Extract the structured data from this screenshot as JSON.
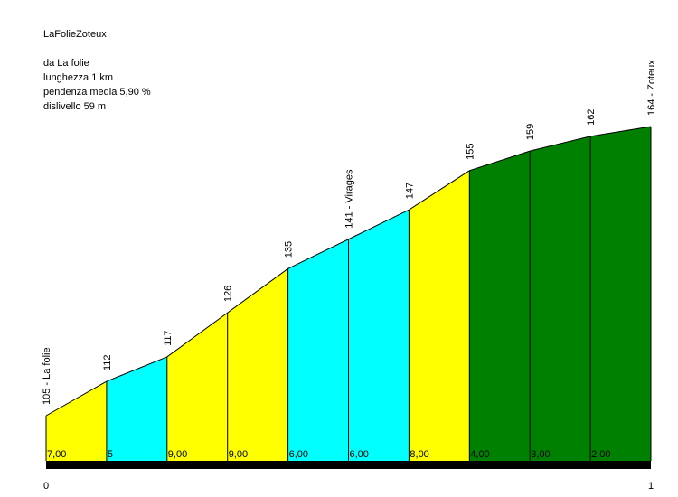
{
  "info": {
    "title": "LaFolieZoteux",
    "from": "da La folie",
    "length": "lunghezza 1 km",
    "gradient": "pendenza media 5,90 %",
    "elevation_gain": "dislivello 59 m"
  },
  "chart_data": {
    "type": "area",
    "title": "LaFolieZoteux",
    "xlabel": "",
    "ylabel": "",
    "x_unit": "km",
    "x_range": [
      0,
      1
    ],
    "x_tick_labels": [
      "0",
      "1"
    ],
    "y_range": [
      105,
      164
    ],
    "grid": false,
    "legend": "none",
    "points": [
      {
        "x": 0.0,
        "altitude": 105,
        "label": "105 - La folie"
      },
      {
        "x": 0.1,
        "altitude": 112,
        "label": "112"
      },
      {
        "x": 0.2,
        "altitude": 117,
        "label": "117"
      },
      {
        "x": 0.3,
        "altitude": 126,
        "label": "126"
      },
      {
        "x": 0.4,
        "altitude": 135,
        "label": "135"
      },
      {
        "x": 0.5,
        "altitude": 141,
        "label": "141 - Virages"
      },
      {
        "x": 0.6,
        "altitude": 147,
        "label": "147"
      },
      {
        "x": 0.7,
        "altitude": 155,
        "label": "155"
      },
      {
        "x": 0.8,
        "altitude": 159,
        "label": "159"
      },
      {
        "x": 0.9,
        "altitude": 162,
        "label": "162"
      },
      {
        "x": 1.0,
        "altitude": 164,
        "label": "164 - Zoteux"
      }
    ],
    "segments": [
      {
        "gradient_label": "7,00",
        "color": "#ffff00"
      },
      {
        "gradient_label": "5",
        "color": "#00ffff"
      },
      {
        "gradient_label": "9,00",
        "color": "#ffff00"
      },
      {
        "gradient_label": "9,00",
        "color": "#ffff00"
      },
      {
        "gradient_label": "6,00",
        "color": "#00ffff"
      },
      {
        "gradient_label": "6,00",
        "color": "#00ffff"
      },
      {
        "gradient_label": "8,00",
        "color": "#ffff00"
      },
      {
        "gradient_label": "4,00",
        "color": "#008000"
      },
      {
        "gradient_label": "3,00",
        "color": "#008000"
      },
      {
        "gradient_label": "2,00",
        "color": "#008000"
      }
    ]
  }
}
